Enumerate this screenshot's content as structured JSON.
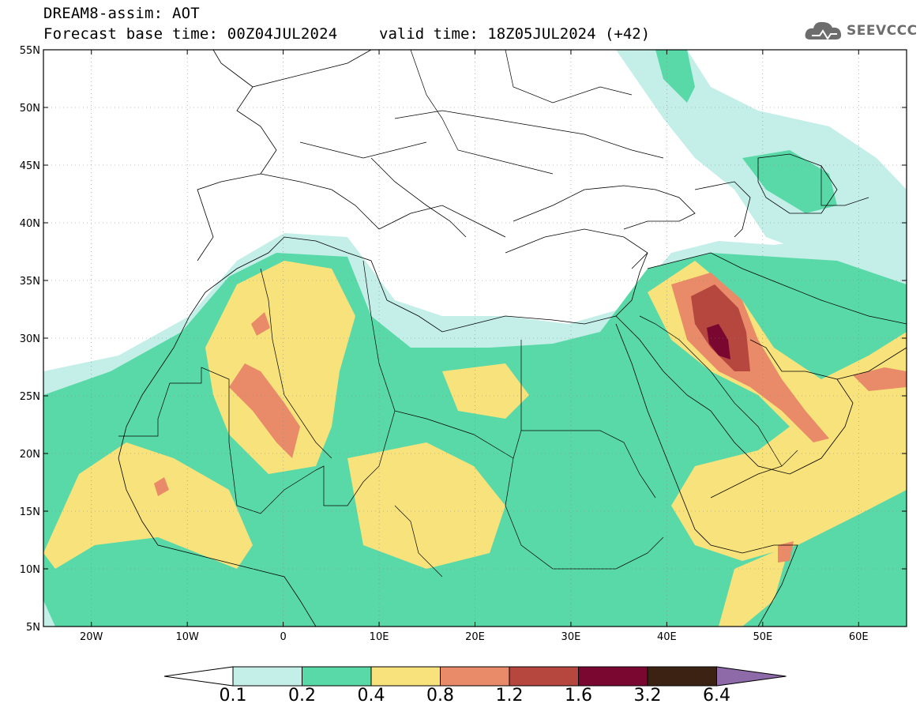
{
  "title": {
    "line1": "DREAM8-assim: AOT",
    "line2": "Forecast base time: 00Z04JUL2024",
    "valid": "valid time: 18Z05JUL2024 (+42)"
  },
  "logo": {
    "text": "SEEVCCC",
    "icon": "cloud-icon"
  },
  "map": {
    "projection": "lat-lon",
    "lon_range": [
      -25,
      65
    ],
    "lat_range": [
      5,
      55
    ],
    "lat_ticks": [
      {
        "v": 55,
        "label": "55N"
      },
      {
        "v": 50,
        "label": "50N"
      },
      {
        "v": 45,
        "label": "45N"
      },
      {
        "v": 40,
        "label": "40N"
      },
      {
        "v": 35,
        "label": "35N"
      },
      {
        "v": 30,
        "label": "30N"
      },
      {
        "v": 25,
        "label": "25N"
      },
      {
        "v": 20,
        "label": "20N"
      },
      {
        "v": 15,
        "label": "15N"
      },
      {
        "v": 10,
        "label": "10N"
      },
      {
        "v": 5,
        "label": "5N"
      }
    ],
    "lon_ticks": [
      {
        "v": -20,
        "label": "20W"
      },
      {
        "v": -10,
        "label": "10W"
      },
      {
        "v": 0,
        "label": "0"
      },
      {
        "v": 10,
        "label": "10E"
      },
      {
        "v": 20,
        "label": "20E"
      },
      {
        "v": 30,
        "label": "30E"
      },
      {
        "v": 40,
        "label": "40E"
      },
      {
        "v": 50,
        "label": "50E"
      },
      {
        "v": 60,
        "label": "60E"
      }
    ],
    "grid": true
  },
  "colorbar": {
    "thresholds": [
      "0.1",
      "0.2",
      "0.4",
      "0.8",
      "1.2",
      "1.6",
      "3.2",
      "6.4"
    ],
    "colors": [
      "#ffffff",
      "#c4efe9",
      "#5ad9a8",
      "#f8e27c",
      "#e98a68",
      "#b5473f",
      "#7a0730",
      "#3b2212",
      "#8e6aa8"
    ]
  }
}
